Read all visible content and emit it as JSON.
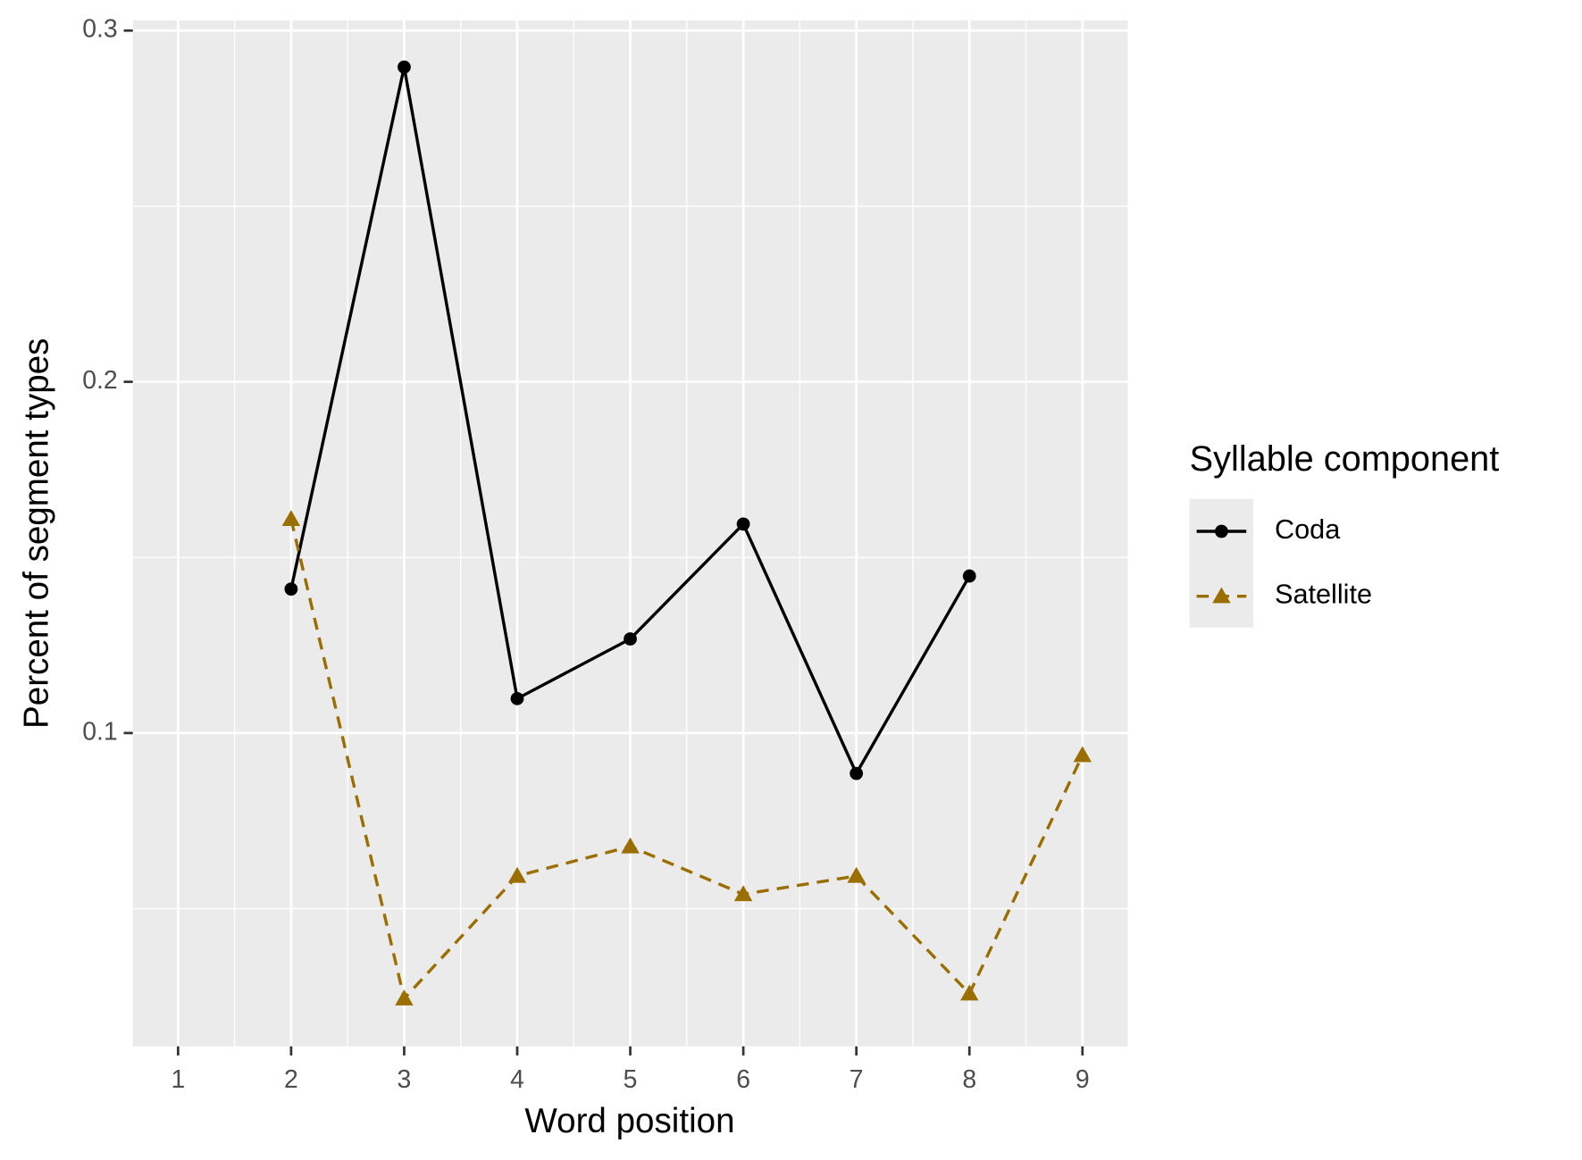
{
  "chart_data": {
    "type": "line",
    "x_label": "Word position",
    "y_label": "Percent of segment types",
    "x": [
      1,
      2,
      3,
      4,
      5,
      6,
      7,
      8,
      9
    ],
    "series": [
      {
        "name": "Coda",
        "color": "#000000",
        "marker": "circle",
        "linestyle": "solid",
        "values": [
          null,
          0.141,
          0.2896,
          0.1098,
          0.1268,
          0.1595,
          0.0885,
          0.1447,
          null
        ]
      },
      {
        "name": "Satellite",
        "color": "#9a6e00",
        "marker": "triangle",
        "linestyle": "dashed",
        "values": [
          null,
          0.1609,
          0.0244,
          0.0593,
          0.0677,
          0.0541,
          0.0593,
          0.0258,
          0.0937
        ]
      }
    ],
    "legend_title": "Syllable component",
    "legend_position": "right",
    "xlim": [
      0.6,
      9.4
    ],
    "xticks": [
      1,
      2,
      3,
      4,
      5,
      6,
      7,
      8,
      9
    ],
    "ylim": [
      0.0108,
      0.3029
    ],
    "yticks": [
      0.1,
      0.2,
      0.3
    ],
    "grid": true
  }
}
